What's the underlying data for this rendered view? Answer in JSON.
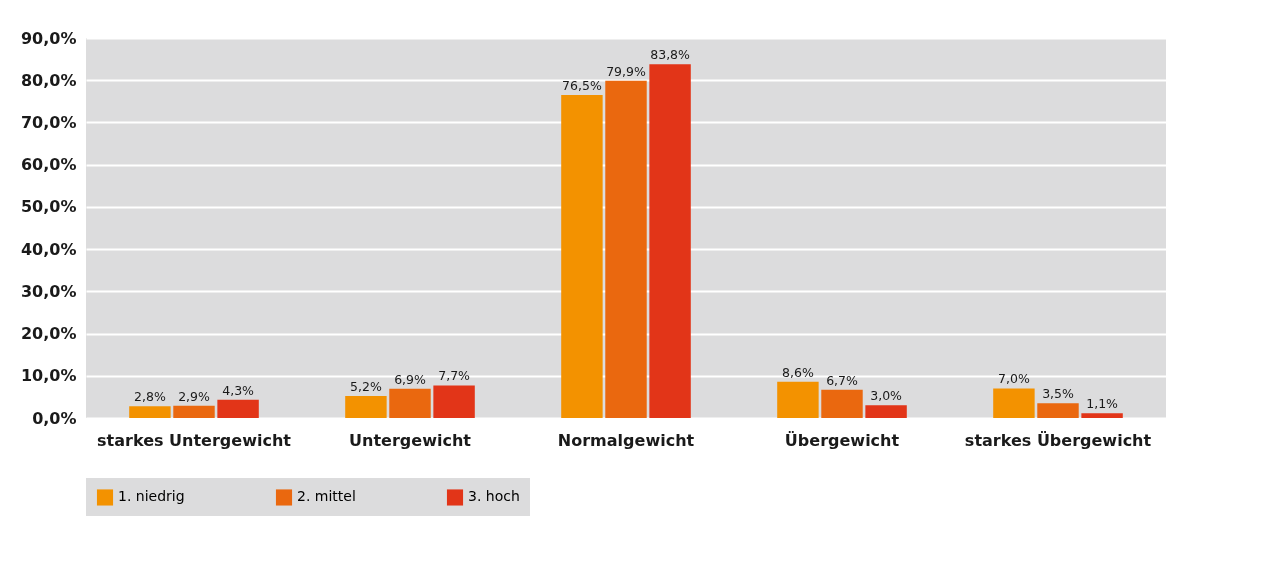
{
  "chart_data": {
    "type": "bar",
    "categories": [
      "starkes Untergewicht",
      "Untergewicht",
      "Normalgewicht",
      "Übergewicht",
      "starkes Übergewicht"
    ],
    "series": [
      {
        "name": "1. niedrig",
        "color": "#f39200",
        "values": [
          2.8,
          5.2,
          76.5,
          8.6,
          7.0
        ],
        "value_labels": [
          "2,8%",
          "5,2%",
          "76,5%",
          "8,6%",
          "7,0%"
        ]
      },
      {
        "name": "2. mittel",
        "color": "#ea680f",
        "values": [
          2.9,
          6.9,
          79.9,
          6.7,
          3.5
        ],
        "value_labels": [
          "2,9%",
          "6,9%",
          "79,9%",
          "6,7%",
          "3,5%"
        ]
      },
      {
        "name": "3. hoch",
        "color": "#e23518",
        "values": [
          4.3,
          7.7,
          83.8,
          3.0,
          1.1
        ],
        "value_labels": [
          "4,3%",
          "7,7%",
          "83,8%",
          "3,0%",
          "1,1%"
        ]
      }
    ],
    "ylim": [
      0,
      90
    ],
    "yticks": [
      {
        "value": 0,
        "label": "0,0%"
      },
      {
        "value": 10,
        "label": "10,0%"
      },
      {
        "value": 20,
        "label": "20,0%"
      },
      {
        "value": 30,
        "label": "30,0%"
      },
      {
        "value": 40,
        "label": "40,0%"
      },
      {
        "value": 50,
        "label": "50,0%"
      },
      {
        "value": 60,
        "label": "60,0%"
      },
      {
        "value": 70,
        "label": "70,0%"
      },
      {
        "value": 80,
        "label": "80,0%"
      },
      {
        "value": 90,
        "label": "90,0%"
      }
    ],
    "grid": "y",
    "legend": "bottom"
  }
}
